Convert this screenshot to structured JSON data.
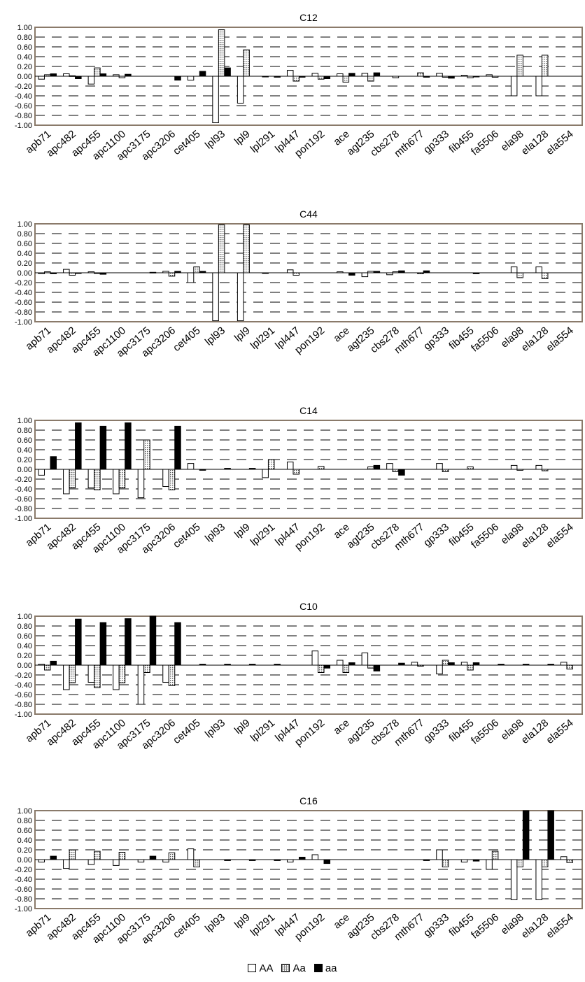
{
  "chart_data": [
    {
      "type": "bar",
      "title": "C12",
      "ylim": [
        -1,
        1
      ],
      "yticks": [
        "1.00",
        "0.80",
        "0.60",
        "0.40",
        "0.20",
        "0.00",
        "-0.20",
        "-0.40",
        "-0.60",
        "-0.80",
        "-1.00"
      ],
      "grid": true,
      "categories": [
        "apb71",
        "apc482",
        "apc455",
        "apc1100",
        "apc3175",
        "apc3206",
        "cet405",
        "lpl93",
        "lpl9",
        "lpl291",
        "lpl447",
        "pon192",
        "ace",
        "agt235",
        "cbs278",
        "mth677",
        "gp333",
        "fib455",
        "fa5506",
        "ela98",
        "ela128",
        "ela554"
      ],
      "series": [
        {
          "name": "AA",
          "values": [
            -0.06,
            0.05,
            -0.16,
            0.03,
            0.0,
            0.0,
            -0.08,
            -0.95,
            -0.55,
            -0.01,
            0.12,
            0.06,
            0.05,
            0.06,
            0.0,
            0.0,
            0.06,
            0.02,
            0.03,
            -0.4,
            -0.4,
            0.0
          ]
        },
        {
          "name": "Aa",
          "values": [
            0.03,
            0.01,
            0.17,
            -0.03,
            0.0,
            0.0,
            0.0,
            0.95,
            0.54,
            0.0,
            -0.1,
            -0.06,
            -0.12,
            -0.1,
            -0.03,
            0.07,
            -0.02,
            -0.03,
            -0.02,
            0.43,
            0.43,
            0.0
          ]
        },
        {
          "name": "aa",
          "values": [
            0.05,
            -0.05,
            0.05,
            0.04,
            0.0,
            -0.08,
            0.1,
            0.17,
            0.0,
            -0.02,
            -0.02,
            -0.05,
            0.06,
            0.07,
            0.0,
            -0.02,
            -0.04,
            -0.01,
            0.0,
            0.0,
            0.0,
            0.0
          ]
        }
      ]
    },
    {
      "type": "bar",
      "title": "C44",
      "ylim": [
        -1,
        1
      ],
      "yticks": [
        "1.00",
        "0.80",
        "0.60",
        "0.40",
        "0.20",
        "0.00",
        "-0.20",
        "-0.40",
        "-0.60",
        "-0.80",
        "-1.00"
      ],
      "grid": true,
      "categories": [
        "apb71",
        "apc482",
        "apc455",
        "apc1100",
        "apc3175",
        "apc3206",
        "cet405",
        "lpl93",
        "lpl9",
        "lpl291",
        "lpl447",
        "pon192",
        "ace",
        "agt235",
        "cbs278",
        "mth677",
        "gp333",
        "fib455",
        "fa5506",
        "ela98",
        "ela128",
        "ela554"
      ],
      "series": [
        {
          "name": "AA",
          "values": [
            -0.02,
            0.07,
            0.02,
            0.0,
            0.0,
            0.03,
            -0.2,
            -0.98,
            -0.98,
            -0.01,
            0.06,
            0.0,
            0.02,
            -0.08,
            -0.04,
            0.0,
            0.0,
            0.0,
            0.0,
            0.12,
            0.12,
            0.0
          ]
        },
        {
          "name": "Aa",
          "values": [
            0.02,
            -0.05,
            -0.01,
            0.0,
            0.0,
            -0.07,
            0.12,
            0.98,
            0.98,
            0.0,
            -0.05,
            0.0,
            0.0,
            0.03,
            0.02,
            -0.02,
            0.0,
            0.0,
            0.0,
            -0.1,
            -0.12,
            0.0
          ]
        },
        {
          "name": "aa",
          "values": [
            -0.02,
            -0.01,
            -0.03,
            0.0,
            0.01,
            0.03,
            0.03,
            0.0,
            0.0,
            0.0,
            0.0,
            0.0,
            -0.05,
            0.03,
            0.04,
            0.04,
            0.0,
            -0.02,
            0.0,
            0.0,
            0.0,
            0.0
          ]
        }
      ]
    },
    {
      "type": "bar",
      "title": "C14",
      "ylim": [
        -1,
        1
      ],
      "yticks": [
        "1.00",
        "0.80",
        "0.60",
        "0.40",
        "0.20",
        "0.00",
        "-0.20",
        "-0.40",
        "-0.60",
        "-0.80",
        "-1.00"
      ],
      "grid": true,
      "categories": [
        "apb71",
        "apc482",
        "apc455",
        "apc1100",
        "apc3175",
        "apc3206",
        "cet405",
        "lpl93",
        "lpl9",
        "lpl291",
        "lpl447",
        "pon192",
        "ace",
        "agt235",
        "cbs278",
        "mth677",
        "gp333",
        "fib455",
        "fa5506",
        "ela98",
        "ela128",
        "ela554"
      ],
      "series": [
        {
          "name": "AA",
          "values": [
            -0.12,
            -0.5,
            -0.38,
            -0.5,
            -0.58,
            -0.35,
            0.12,
            0.0,
            0.0,
            -0.17,
            0.15,
            0.0,
            0.0,
            0.0,
            0.12,
            0.0,
            0.12,
            0.0,
            0.0,
            0.08,
            0.08,
            0.0
          ]
        },
        {
          "name": "Aa",
          "values": [
            0.0,
            -0.38,
            -0.42,
            -0.38,
            0.6,
            -0.42,
            0.0,
            0.0,
            0.0,
            0.2,
            -0.1,
            0.06,
            0.0,
            0.05,
            -0.05,
            0.0,
            -0.05,
            0.05,
            0.0,
            -0.02,
            -0.03,
            0.0
          ]
        },
        {
          "name": "aa",
          "values": [
            0.26,
            0.95,
            0.88,
            0.95,
            0.0,
            0.88,
            -0.02,
            0.02,
            0.02,
            0.0,
            0.0,
            0.0,
            0.0,
            0.08,
            -0.12,
            0.0,
            0.0,
            0.0,
            0.0,
            0.0,
            0.0,
            0.0
          ]
        }
      ]
    },
    {
      "type": "bar",
      "title": "C10",
      "ylim": [
        -1,
        1
      ],
      "yticks": [
        "1.00",
        "0.80",
        "0.60",
        "0.40",
        "0.20",
        "0.00",
        "-0.20",
        "-0.40",
        "-0.60",
        "-0.80",
        "-1.00"
      ],
      "grid": true,
      "categories": [
        "apb71",
        "apc482",
        "apc455",
        "apc1100",
        "apc3175",
        "apc3206",
        "cet405",
        "lpl93",
        "lpl9",
        "lpl291",
        "lpl447",
        "pon192",
        "ace",
        "agt235",
        "cbs278",
        "mth677",
        "gp333",
        "fib455",
        "fa5506",
        "ela98",
        "ela128",
        "ela554"
      ],
      "series": [
        {
          "name": "AA",
          "values": [
            0.02,
            -0.5,
            -0.35,
            -0.5,
            -0.8,
            -0.35,
            0.0,
            0.0,
            0.0,
            0.0,
            0.0,
            0.29,
            0.1,
            0.25,
            0.0,
            0.06,
            -0.18,
            0.06,
            0.0,
            0.0,
            0.0,
            0.06
          ]
        },
        {
          "name": "Aa",
          "values": [
            -0.1,
            -0.36,
            -0.46,
            -0.36,
            -0.15,
            -0.42,
            0.0,
            0.0,
            0.0,
            0.0,
            0.0,
            -0.15,
            -0.15,
            -0.06,
            0.0,
            -0.02,
            0.1,
            -0.1,
            0.0,
            0.0,
            0.0,
            -0.08
          ]
        },
        {
          "name": "aa",
          "values": [
            0.08,
            0.94,
            0.87,
            0.95,
            1.0,
            0.87,
            0.02,
            0.02,
            0.02,
            0.02,
            0.0,
            -0.06,
            0.05,
            -0.12,
            0.04,
            0.0,
            0.05,
            0.05,
            0.02,
            0.02,
            0.02,
            0.0
          ]
        }
      ]
    },
    {
      "type": "bar",
      "title": "C16",
      "ylim": [
        -1,
        1
      ],
      "yticks": [
        "1.00",
        "0.80",
        "0.60",
        "0.40",
        "0.20",
        "0.00",
        "-0.20",
        "-0.40",
        "-0.60",
        "-0.80",
        "-1.00"
      ],
      "grid": true,
      "categories": [
        "apb71",
        "apc482",
        "apc455",
        "apc1100",
        "apc3175",
        "apc3206",
        "cet405",
        "lpl93",
        "lpl9",
        "lpl291",
        "lpl447",
        "pon192",
        "ace",
        "agt235",
        "cbs278",
        "mth677",
        "gp333",
        "fib455",
        "fa5506",
        "ela98",
        "ela128",
        "ela554"
      ],
      "series": [
        {
          "name": "AA",
          "values": [
            -0.05,
            -0.18,
            -0.1,
            -0.12,
            -0.05,
            -0.05,
            0.22,
            0.0,
            0.0,
            0.0,
            -0.05,
            0.1,
            0.0,
            0.0,
            0.0,
            0.0,
            0.2,
            -0.05,
            -0.2,
            -0.82,
            -0.82,
            0.06
          ]
        },
        {
          "name": "Aa",
          "values": [
            0.0,
            0.2,
            0.17,
            0.15,
            0.0,
            0.14,
            -0.15,
            0.0,
            0.0,
            0.0,
            0.0,
            0.0,
            0.0,
            0.0,
            0.0,
            0.0,
            -0.15,
            0.0,
            0.17,
            -0.15,
            -0.15,
            -0.06
          ]
        },
        {
          "name": "aa",
          "values": [
            0.07,
            0.0,
            0.0,
            0.0,
            0.07,
            0.0,
            0.0,
            -0.02,
            -0.02,
            -0.02,
            0.05,
            -0.08,
            0.0,
            0.0,
            0.0,
            -0.02,
            0.0,
            -0.03,
            0.0,
            1.0,
            1.0,
            0.0
          ]
        }
      ]
    }
  ],
  "legend": {
    "items": [
      {
        "label": "AA",
        "color": "#ffffff"
      },
      {
        "label": "Aa",
        "color": "#999999"
      },
      {
        "label": "aa",
        "color": "#000000"
      }
    ]
  }
}
